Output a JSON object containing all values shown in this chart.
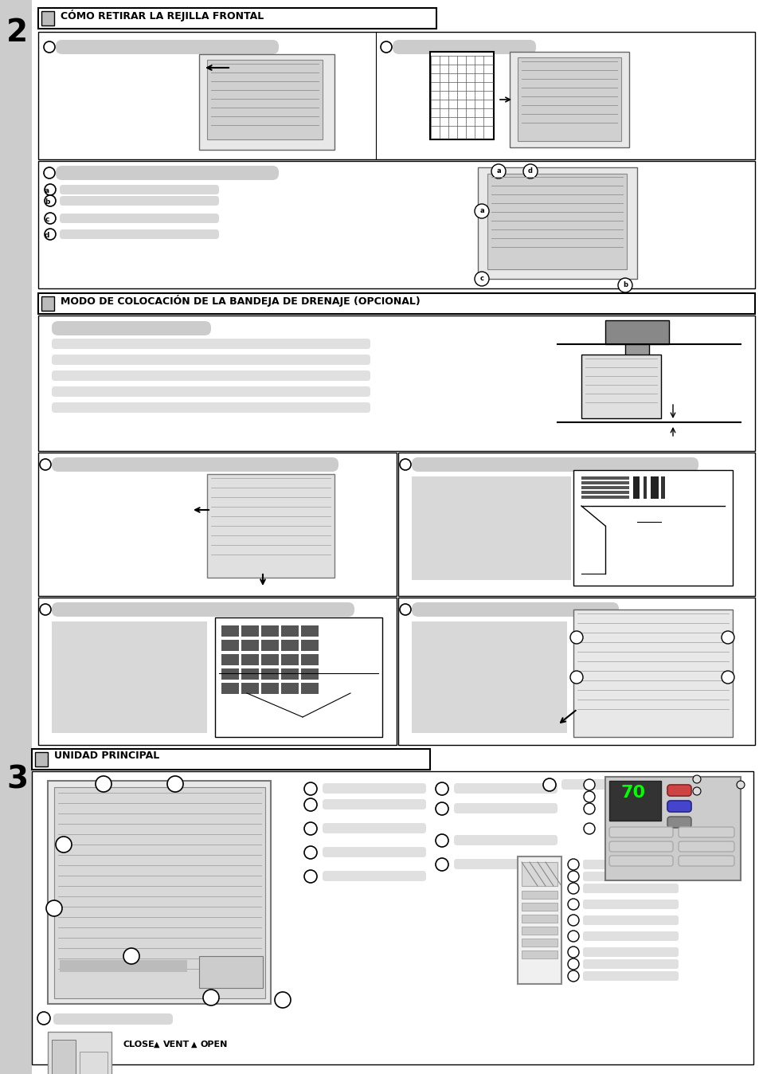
{
  "bg_color": "#ffffff",
  "border_color": "#cccccc",
  "dark_gray": "#888888",
  "medium_gray": "#aaaaaa",
  "light_gray": "#d0d0d0",
  "lighter_gray": "#e0e0e0",
  "section_bg": "#f0f0f0",
  "text_dark": "#111111",
  "text_medium": "#333333",
  "left_bar_color": "#aaaaaa",
  "header_bg": "#ffffff",
  "header_border": "#000000",
  "section2_title": "CÓMO RETIRAR LA REJILLA FRONTAL",
  "section3_title": "MODO DE COLOCACIÓN DE LA BANDEJA DE DRENAJE (OPCIONAL)",
  "section4_title": "UNIDAD PRINCIPAL",
  "num2": "2",
  "num3": "3",
  "close_vent_open": "CLOSE   VENT   OPEN"
}
